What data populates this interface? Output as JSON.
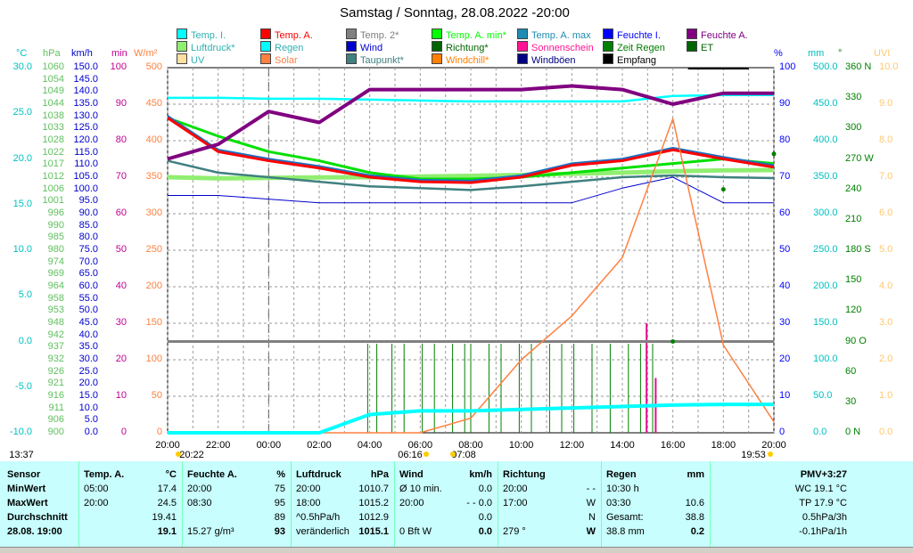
{
  "title": "Samstag / Sonntag, 28.08.2022  -20:00",
  "legend": [
    {
      "label": "Temp. I.",
      "color": "#00ffff"
    },
    {
      "label": "Temp. A.",
      "color": "#ff0000"
    },
    {
      "label": "Temp. 2*",
      "color": "#808080"
    },
    {
      "label": "Temp. A. min*",
      "color": "#00ff00"
    },
    {
      "label": "Temp. A. max",
      "color": "#1e8cb4"
    },
    {
      "label": "Feuchte I.",
      "color": "#0000ff"
    },
    {
      "label": "Feuchte A.",
      "color": "#800080"
    },
    {
      "label": "Luftdruck*",
      "color": "#90ee70"
    },
    {
      "label": "Regen",
      "color": "#00ffff"
    },
    {
      "label": "Wind",
      "color": "#0000cd"
    },
    {
      "label": "Richtung*",
      "color": "#006400"
    },
    {
      "label": "Sonnenschein",
      "color": "#ff1493"
    },
    {
      "label": "Zeit Regen",
      "color": "#008000"
    },
    {
      "label": "ET",
      "color": "#006400"
    },
    {
      "label": "UV",
      "color": "#ffe0a0"
    },
    {
      "label": "Solar",
      "color": "#ff8040"
    },
    {
      "label": "Taupunkt*",
      "color": "#408080"
    },
    {
      "label": "Windchill*",
      "color": "#ff8000"
    },
    {
      "label": "Windböen",
      "color": "#000080"
    },
    {
      "label": "Empfang",
      "color": "#000000"
    }
  ],
  "axes": {
    "temp": {
      "unit": "°C",
      "color": "#00c0c0",
      "ticks": [
        "30.0",
        "25.0",
        "20.0",
        "15.0",
        "10.0",
        "5.0",
        "0.0",
        "-5.0",
        "-10.0"
      ]
    },
    "pressure": {
      "unit": "hPa",
      "color": "#60c060",
      "ticks": [
        "1060",
        "1054",
        "1049",
        "1044",
        "1038",
        "1033",
        "1028",
        "1022",
        "1017",
        "1012",
        "1006",
        "1001",
        "996",
        "990",
        "985",
        "980",
        "974",
        "969",
        "964",
        "958",
        "953",
        "948",
        "942",
        "937",
        "932",
        "926",
        "921",
        "916",
        "911",
        "906",
        "900"
      ]
    },
    "wind": {
      "unit": "km/h",
      "color": "#0000cd",
      "ticks": [
        "150.0",
        "145.0",
        "140.0",
        "135.0",
        "130.0",
        "125.0",
        "120.0",
        "115.0",
        "110.0",
        "105.0",
        "100.0",
        "95.0",
        "90.0",
        "85.0",
        "80.0",
        "75.0",
        "70.0",
        "65.0",
        "60.0",
        "55.0",
        "50.0",
        "45.0",
        "40.0",
        "35.0",
        "30.0",
        "25.0",
        "20.0",
        "15.0",
        "10.0",
        "5.0",
        "0.0"
      ]
    },
    "min": {
      "unit": "min",
      "color": "#c00090",
      "ticks": [
        "100",
        "90",
        "80",
        "70",
        "60",
        "50",
        "40",
        "30",
        "20",
        "10",
        "0"
      ]
    },
    "solar": {
      "unit": "W/m²",
      "color": "#ff8040",
      "ticks": [
        "500",
        "450",
        "400",
        "350",
        "300",
        "250",
        "200",
        "150",
        "100",
        "50",
        "0"
      ]
    },
    "hum": {
      "unit": "%",
      "color": "#0000ff",
      "ticks": [
        "100",
        "90",
        "80",
        "70",
        "60",
        "50",
        "40",
        "30",
        "20",
        "10",
        "0"
      ]
    },
    "rain": {
      "unit": "mm",
      "color": "#00c0c0",
      "ticks": [
        "500.0",
        "450.0",
        "400.0",
        "350.0",
        "300.0",
        "250.0",
        "200.0",
        "150.0",
        "100.0",
        "50.0",
        "0.0"
      ]
    },
    "dir": {
      "unit": "°",
      "color": "#008000",
      "ticks": [
        "360 N",
        "330",
        "300",
        "270 W",
        "240",
        "210",
        "180 S",
        "150",
        "120",
        "90  O",
        "60",
        "30",
        "0  N"
      ]
    },
    "uv": {
      "unit": "UVI",
      "color": "#ffc870",
      "ticks": [
        "10.0",
        "9.0",
        "8.0",
        "7.0",
        "6.0",
        "5.0",
        "4.0",
        "3.0",
        "2.0",
        "1.0",
        "0.0"
      ]
    }
  },
  "xaxis": {
    "ticks": [
      "20:00",
      "22:00",
      "00:00",
      "02:00",
      "04:00",
      "06:00",
      "08:00",
      "10:00",
      "12:00",
      "14:00",
      "16:00",
      "18:00",
      "20:00"
    ]
  },
  "sun": {
    "rise1": "13:37",
    "set1": "20:22",
    "rise2": "06:16",
    "set2": "19:53",
    "mark": "07:08"
  },
  "panel": {
    "sensor": {
      "h": "Sensor",
      "rows": [
        "MinWert",
        "MaxWert",
        "Durchschnitt",
        "28.08. 19:00"
      ]
    },
    "temp": {
      "h": "Temp. A.",
      "unit": "°C",
      "rows": [
        [
          "05:00",
          "17.4"
        ],
        [
          "20:00",
          "24.5"
        ],
        [
          "",
          "19.41"
        ],
        [
          "",
          "19.1"
        ]
      ]
    },
    "hum": {
      "h": "Feuchte A.",
      "unit": "%",
      "rows": [
        [
          "20:00",
          "75"
        ],
        [
          "08:30",
          "95"
        ],
        [
          "",
          "89"
        ],
        [
          "15.27 g/m³",
          "93"
        ]
      ]
    },
    "press": {
      "h": "Luftdruck",
      "unit": "hPa",
      "rows": [
        [
          "20:00",
          "1010.7"
        ],
        [
          "18:00",
          "1015.2"
        ],
        [
          "^0.5hPa/h",
          "1012.9"
        ],
        [
          "veränderlich",
          "1015.1"
        ]
      ]
    },
    "wind": {
      "h": "Wind",
      "unit": "km/h",
      "rows": [
        [
          "Ø 10 min.",
          "0.0"
        ],
        [
          "20:00",
          "- - 0.0"
        ],
        [
          "",
          "0.0"
        ],
        [
          "0 Bft W",
          "0.0"
        ]
      ]
    },
    "dir": {
      "h": "Richtung",
      "rows": [
        [
          "20:00",
          "- -"
        ],
        [
          "17:00",
          "W"
        ],
        [
          "",
          "N"
        ],
        [
          "279 °",
          "W"
        ]
      ]
    },
    "rain": {
      "h": "Regen",
      "unit": "mm",
      "rows": [
        [
          "10:30 h",
          ""
        ],
        [
          "03:30",
          "10.6"
        ],
        [
          "Gesamt:",
          "38.8"
        ],
        [
          "38.8 mm",
          "0.2"
        ]
      ]
    },
    "pmv": {
      "h": "PMV+3:27",
      "rows": [
        "WC 19.1 °C",
        "TP 17.9 °C",
        "0.5hPa/3h",
        "-0.1hPa/1h"
      ]
    }
  },
  "chart_data": {
    "type": "line",
    "x": [
      "20:00",
      "22:00",
      "00:00",
      "02:00",
      "04:00",
      "06:00",
      "08:00",
      "10:00",
      "12:00",
      "14:00",
      "16:00",
      "18:00",
      "20:00"
    ],
    "series": [
      {
        "name": "Temp. I.",
        "unit": "°C",
        "values": [
          26.7,
          26.7,
          26.6,
          26.6,
          26.5,
          26.4,
          26.3,
          26.3,
          26.3,
          26.3,
          26.9,
          27.0,
          27.0
        ]
      },
      {
        "name": "Temp. A.",
        "unit": "°C",
        "values": [
          24.5,
          20.8,
          19.8,
          19.0,
          18.0,
          17.5,
          17.4,
          18.0,
          19.3,
          19.8,
          21.0,
          20.0,
          19.1
        ]
      },
      {
        "name": "Temp. A. min*",
        "unit": "°C",
        "values": [
          24.5,
          22.5,
          20.8,
          19.8,
          18.5,
          17.8,
          17.8,
          18.0,
          18.5,
          19.0,
          19.5,
          20.0,
          19.5
        ]
      },
      {
        "name": "Taupunkt*",
        "unit": "°C",
        "values": [
          19.8,
          18.5,
          18.0,
          17.5,
          17.0,
          16.8,
          16.6,
          17.0,
          17.5,
          18.0,
          18.2,
          18.0,
          17.9
        ]
      },
      {
        "name": "Feuchte A.",
        "unit": "%",
        "values": [
          75,
          79,
          88,
          85,
          94,
          94,
          94,
          94,
          95,
          94,
          90,
          93,
          93
        ]
      },
      {
        "name": "Feuchte I.",
        "unit": "%",
        "values": [
          65,
          65,
          64,
          63,
          63,
          63,
          63,
          63,
          63,
          67,
          70,
          63,
          63
        ]
      },
      {
        "name": "Solar",
        "unit": "W/m²",
        "values": [
          0,
          0,
          0,
          0,
          0,
          0,
          20,
          100,
          160,
          240,
          430,
          120,
          15
        ]
      },
      {
        "name": "Regen",
        "unit": "mm",
        "values": [
          0,
          0,
          0,
          0,
          25,
          30,
          30,
          32,
          34,
          36,
          38,
          38.8,
          38.8
        ]
      },
      {
        "name": "Richtung*",
        "unit": "°",
        "values": [
          null,
          null,
          null,
          null,
          null,
          null,
          null,
          null,
          null,
          null,
          90,
          240,
          275
        ]
      },
      {
        "name": "Luftdruck*",
        "unit": "hPa",
        "values": [
          1012.0,
          1011.5,
          1011.7,
          1011.9,
          1012.0,
          1012.3,
          1012.6,
          1013.0,
          1013.5,
          1014.0,
          1014.6,
          1015.0,
          1015.1
        ]
      }
    ],
    "ylim_temp": [
      -10,
      30
    ],
    "ylim_hum": [
      0,
      100
    ],
    "ylim_solar": [
      0,
      500
    ],
    "ylim_rain": [
      0,
      500
    ],
    "grid": true
  }
}
